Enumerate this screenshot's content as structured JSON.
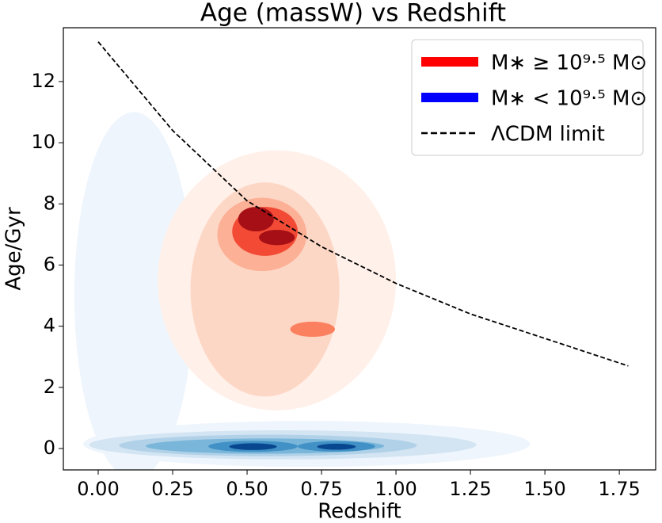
{
  "chart_data": {
    "type": "contour",
    "title": "Age (massW) vs Redshift",
    "x_label": "Redshift",
    "y_label": "Age/Gyr",
    "xlim": [
      -0.117,
      1.872
    ],
    "ylim": [
      -0.7,
      13.76
    ],
    "xticks": [
      {
        "value": 0,
        "label": "0.00"
      },
      {
        "value": 0.25,
        "label": "0.25"
      },
      {
        "value": 0.5,
        "label": "0.50"
      },
      {
        "value": 0.75,
        "label": "0.75"
      },
      {
        "value": 1,
        "label": "1.00"
      },
      {
        "value": 1.25,
        "label": "1.25"
      },
      {
        "value": 1.5,
        "label": "1.50"
      },
      {
        "value": 1.75,
        "label": "1.75"
      }
    ],
    "yticks": [
      0,
      2,
      4,
      6,
      8,
      10,
      12
    ],
    "legend": "upper right",
    "series": [
      {
        "name": "M∗ < 10⁹·⁵ M⊙",
        "type": "kde",
        "color": "#0000ff",
        "levels": [
          "#eef5fc",
          "#d3e4f3",
          "#b0d1e7",
          "#7ab6d9",
          "#4191c6",
          "#1b69af",
          "#08478f"
        ],
        "x": [
          0.12,
          0.7,
          0.62,
          0.57,
          0.56,
          0.52,
          0.8,
          0.52,
          0.8
        ],
        "values": [
          5,
          0.15,
          0.12,
          0.1,
          0.08,
          0.07,
          0.07,
          0.06,
          0.06
        ],
        "width": [
          0.4,
          1.5,
          1.3,
          1.0,
          0.8,
          0.3,
          0.26,
          0.16,
          0.13
        ],
        "height": [
          12,
          1.5,
          0.95,
          0.7,
          0.5,
          0.36,
          0.34,
          0.22,
          0.2
        ],
        "level": [
          0,
          0,
          1,
          2,
          3,
          4,
          4,
          6,
          6
        ]
      },
      {
        "name": "M∗ ≥ 10⁹·⁵ M⊙",
        "type": "kde",
        "color": "#ff0000",
        "levels": [
          "#fff0e9",
          "#fdd7c5",
          "#fcb096",
          "#fb8060",
          "#f24a35",
          "#c8171c",
          "#a50f15"
        ],
        "x": [
          0.6,
          0.56,
          0.55,
          0.72,
          0.56,
          0.53,
          0.6
        ],
        "values": [
          5.5,
          5.2,
          7.0,
          3.9,
          7.1,
          7.5,
          6.9
        ],
        "width": [
          0.8,
          0.5,
          0.3,
          0.15,
          0.22,
          0.12,
          0.12
        ],
        "height": [
          8.5,
          7,
          2.4,
          0.5,
          1.6,
          0.8,
          0.5
        ],
        "level": [
          0,
          1,
          2,
          3,
          4,
          6,
          6
        ]
      },
      {
        "name": "ΛCDM limit",
        "type": "line",
        "color": "#000000",
        "x": [
          0,
          0.25,
          0.5,
          0.75,
          1.0,
          1.25,
          1.5,
          1.78
        ],
        "values": [
          13.3,
          10.4,
          8.1,
          6.6,
          5.4,
          4.4,
          3.6,
          2.7
        ]
      }
    ]
  }
}
